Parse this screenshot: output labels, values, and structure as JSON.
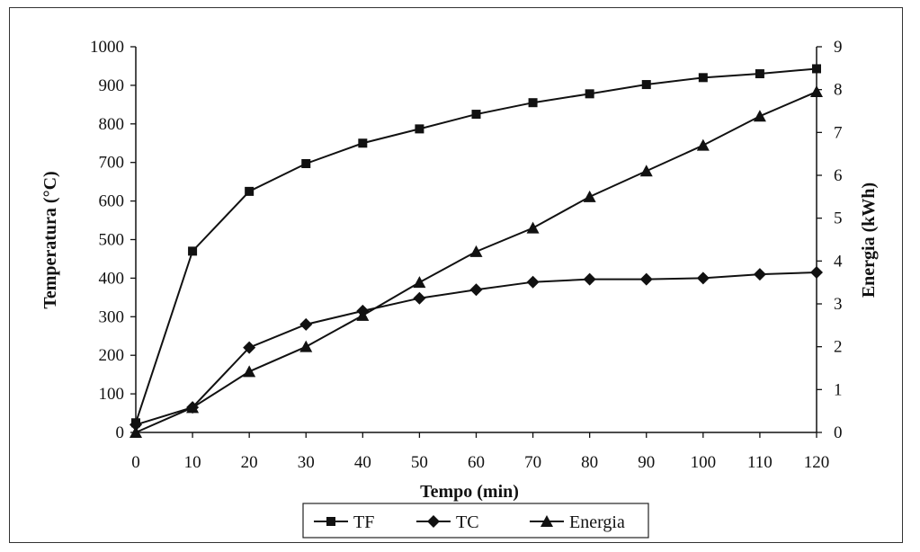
{
  "chart_data": {
    "type": "line",
    "xlabel": "Tempo (min)",
    "ylabel_left": "Temperatura (°C)",
    "ylabel_right": "Energia (kWh)",
    "x": [
      0,
      10,
      20,
      30,
      40,
      50,
      60,
      70,
      80,
      90,
      100,
      110,
      120
    ],
    "xlim": [
      0,
      120
    ],
    "ylim_left": [
      0,
      1000
    ],
    "ylim_right": [
      0,
      9
    ],
    "x_ticks": [
      "0",
      "10",
      "20",
      "30",
      "40",
      "50",
      "60",
      "70",
      "80",
      "90",
      "100",
      "110",
      "120"
    ],
    "y_ticks_left": [
      "0",
      "100",
      "200",
      "300",
      "400",
      "500",
      "600",
      "700",
      "800",
      "900",
      "1000"
    ],
    "y_ticks_right": [
      "0",
      "1",
      "2",
      "3",
      "4",
      "5",
      "6",
      "7",
      "8",
      "9"
    ],
    "series": [
      {
        "name": "TF",
        "axis": "left",
        "marker": "square",
        "values": [
          25,
          470,
          625,
          697,
          750,
          787,
          825,
          855,
          878,
          902,
          920,
          930,
          943
        ]
      },
      {
        "name": "TC",
        "axis": "left",
        "marker": "diamond",
        "values": [
          20,
          65,
          220,
          280,
          315,
          348,
          370,
          390,
          397,
          397,
          400,
          410,
          415
        ]
      },
      {
        "name": "Energia",
        "axis": "right",
        "marker": "triangle",
        "values": [
          0,
          0.58,
          1.42,
          2.0,
          2.73,
          3.5,
          4.22,
          4.77,
          5.5,
          6.1,
          6.7,
          7.38,
          7.95
        ]
      }
    ],
    "grid": false,
    "legend_position": "bottom-center",
    "line_color": "#111111"
  }
}
